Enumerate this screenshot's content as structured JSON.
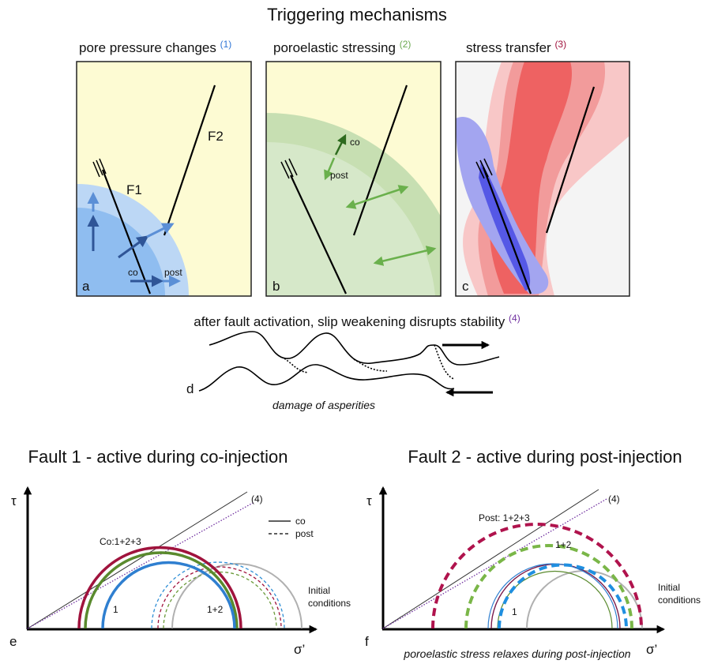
{
  "title": "Triggering mechanisms",
  "panels": [
    {
      "heading": "pore pressure changes",
      "ref": "(1)",
      "letter": "a",
      "labels": [
        "F1",
        "F2",
        "co",
        "post"
      ]
    },
    {
      "heading": "poroelastic stressing",
      "ref": "(2)",
      "letter": "b",
      "labels": [
        "co",
        "post"
      ]
    },
    {
      "heading": "stress transfer",
      "ref": "(3)",
      "letter": "c"
    }
  ],
  "weakening": {
    "heading": "after fault activation, slip weakening disrupts stability",
    "ref": "(4)",
    "letter": "d",
    "caption": "damage of asperities"
  },
  "plots": [
    {
      "title": "Fault 1 - active during co-injection",
      "y_axis": "τ",
      "x_axis": "σ’",
      "letter": "e",
      "line_label": "(4)",
      "legend": [
        "co",
        "post"
      ],
      "circle_labels": [
        "Co:1+2+3",
        "1",
        "1+2"
      ],
      "initial_lines": [
        "Initial",
        "conditions"
      ]
    },
    {
      "title": "Fault 2 - active during post-injection",
      "y_axis": "τ",
      "x_axis": "σ’",
      "letter": "f",
      "line_label": "(4)",
      "circle_labels": [
        "Post: 1+2+3",
        "1+2",
        "1"
      ],
      "initial_lines": [
        "Initial",
        "conditions"
      ],
      "caption": "poroelastic stress relaxes during post-injection"
    }
  ]
}
